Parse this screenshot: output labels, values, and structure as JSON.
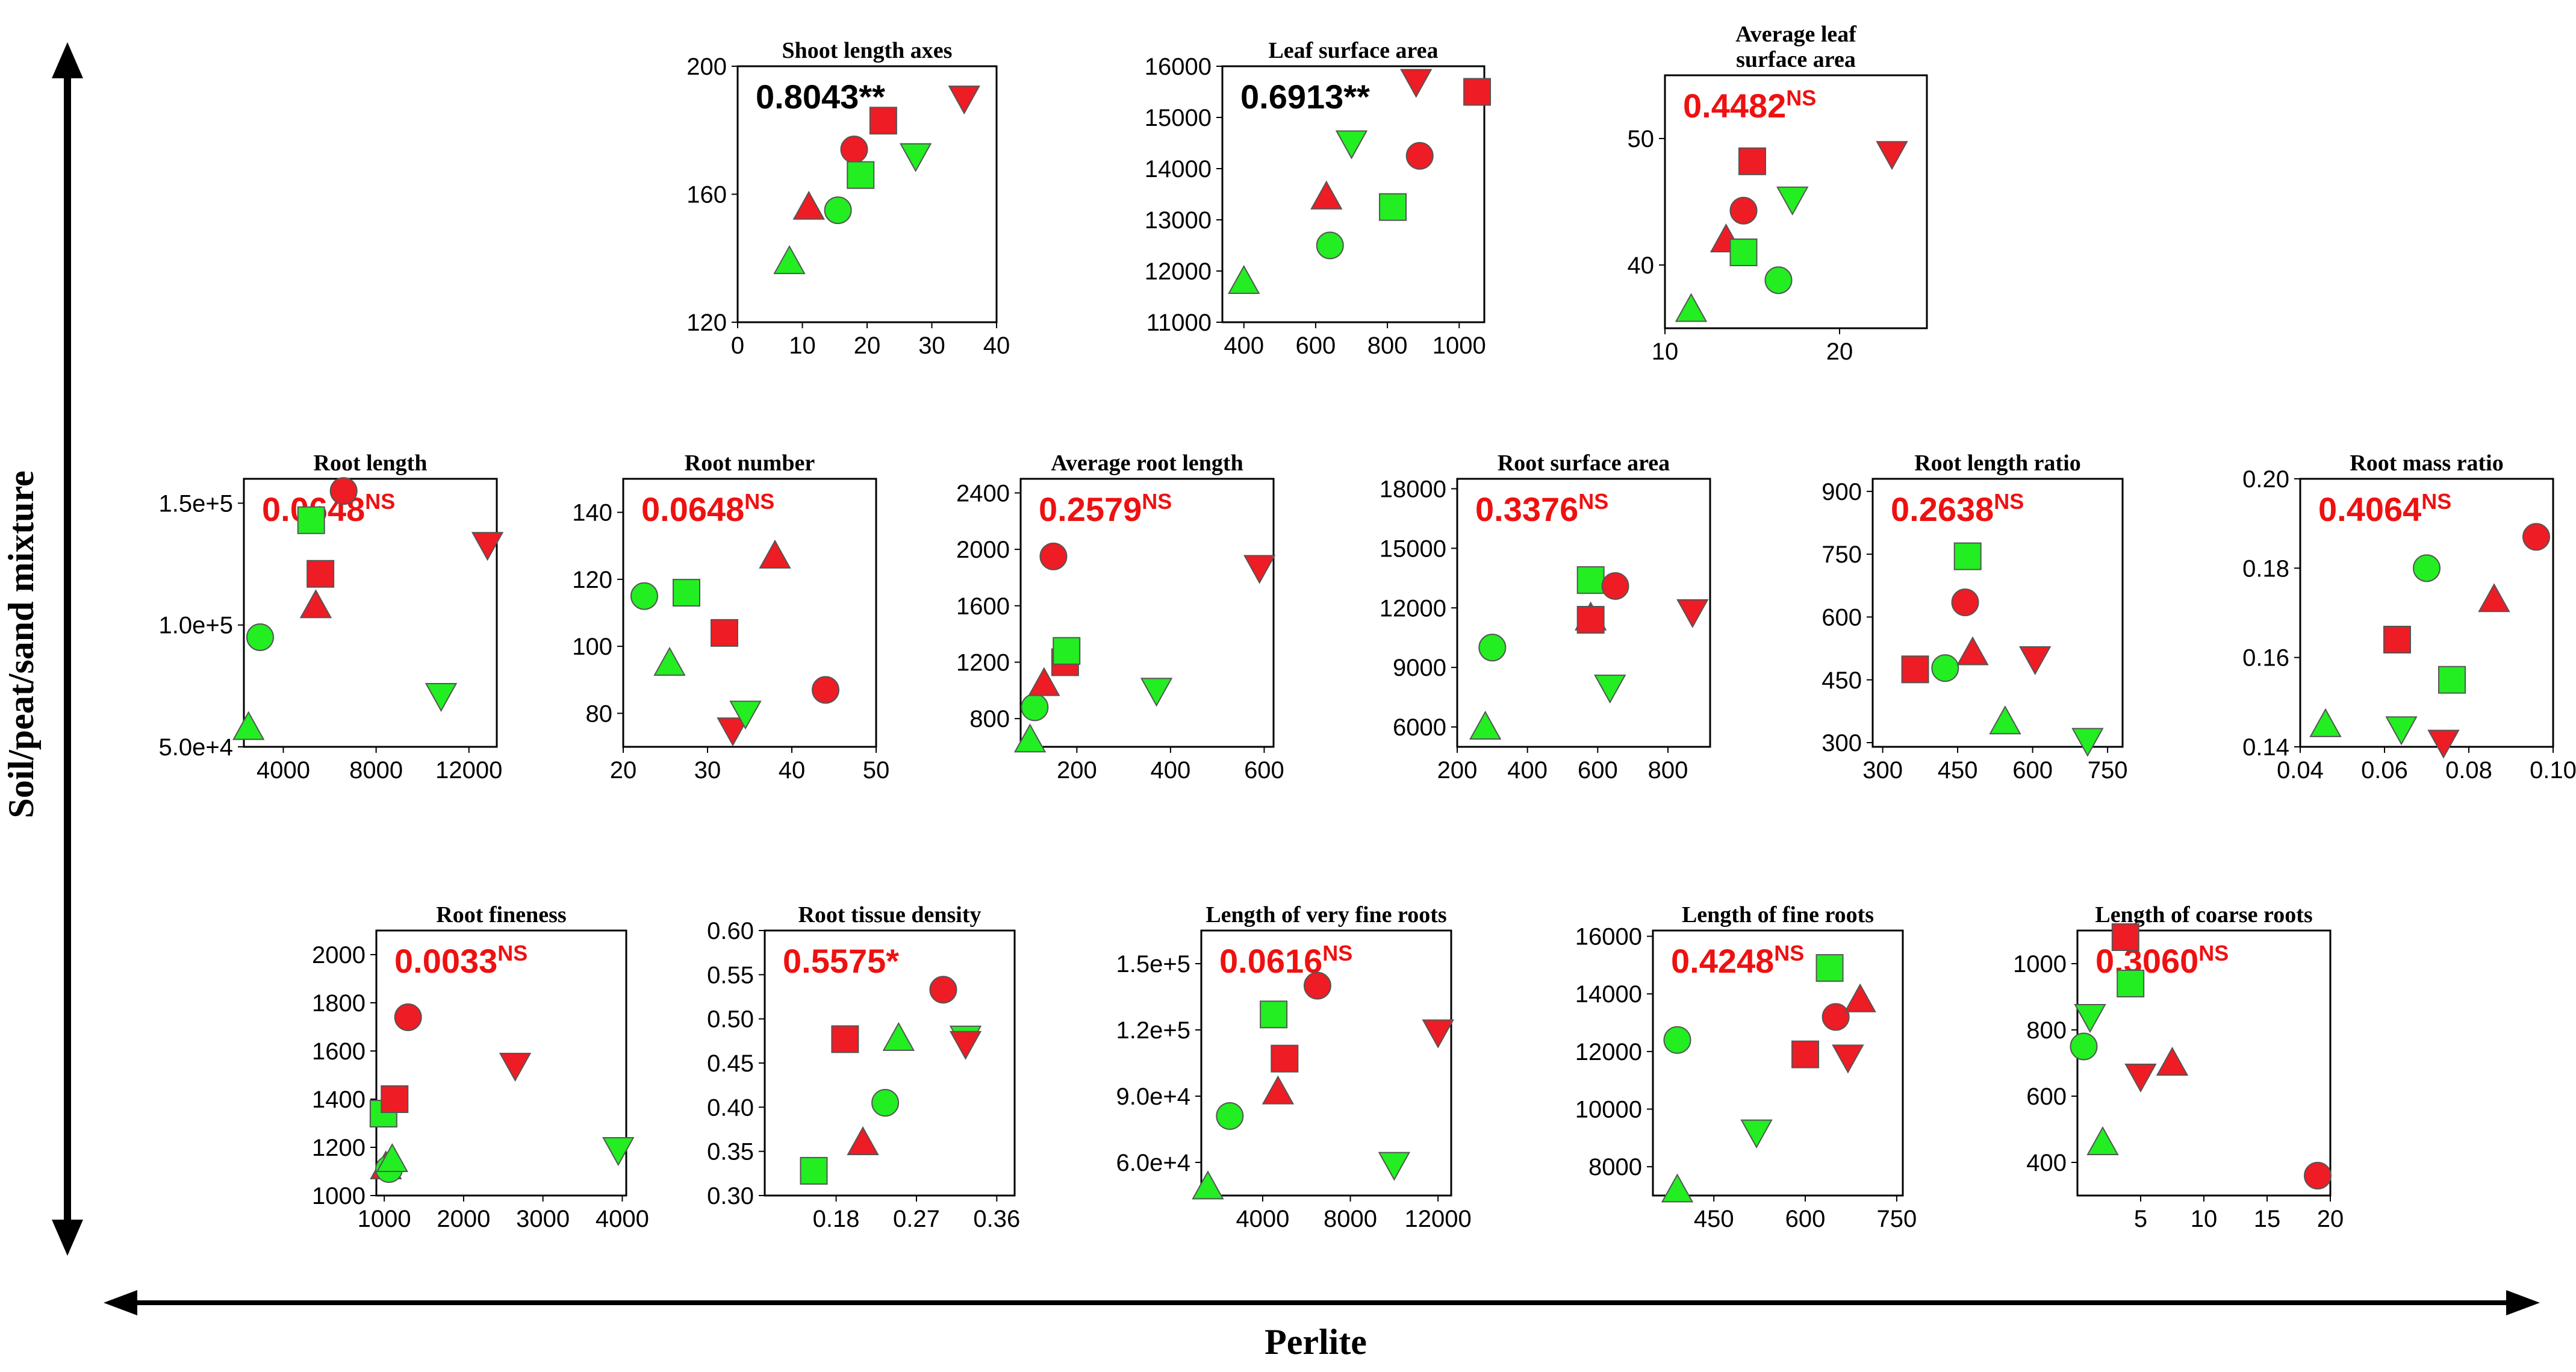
{
  "figure": {
    "y_axis_label": "Soil/peat/sand mixture",
    "x_axis_label": "Perlite",
    "colors": {
      "red": "#ee1c24",
      "green": "#22ee22",
      "sig": "#000000",
      "ns": "#ee1111"
    }
  },
  "chart_data": [
    {
      "type": "scatter",
      "title": "Shoot length axes",
      "coef": "0.8043",
      "sig": "**",
      "xlim": [
        0,
        40
      ],
      "ylim": [
        120,
        200
      ],
      "xticks": [
        "0",
        "10",
        "20",
        "30",
        "40"
      ],
      "yticks": [
        "120",
        "160",
        "200"
      ],
      "points": [
        {
          "x": 8,
          "y": 139,
          "shape": "triangle",
          "color": "green"
        },
        {
          "x": 11,
          "y": 156,
          "shape": "triangle",
          "color": "red"
        },
        {
          "x": 15.5,
          "y": 155,
          "shape": "circle",
          "color": "green"
        },
        {
          "x": 18,
          "y": 174,
          "shape": "circle",
          "color": "red"
        },
        {
          "x": 19,
          "y": 166,
          "shape": "square",
          "color": "green"
        },
        {
          "x": 22.5,
          "y": 183,
          "shape": "square",
          "color": "red"
        },
        {
          "x": 27.5,
          "y": 172,
          "shape": "down",
          "color": "green"
        },
        {
          "x": 35,
          "y": 190,
          "shape": "down",
          "color": "red"
        }
      ]
    },
    {
      "type": "scatter",
      "title": "Leaf surface area",
      "coef": "0.6913",
      "sig": "**",
      "xlim": [
        340,
        1070
      ],
      "ylim": [
        11000,
        16000
      ],
      "xticks": [
        "400",
        "600",
        "800",
        "1000"
      ],
      "yticks": [
        "11000",
        "12000",
        "13000",
        "14000",
        "15000",
        "16000"
      ],
      "points": [
        {
          "x": 400,
          "y": 11800,
          "shape": "triangle",
          "color": "green"
        },
        {
          "x": 630,
          "y": 13450,
          "shape": "triangle",
          "color": "red"
        },
        {
          "x": 640,
          "y": 12500,
          "shape": "circle",
          "color": "green"
        },
        {
          "x": 700,
          "y": 14500,
          "shape": "down",
          "color": "green"
        },
        {
          "x": 815,
          "y": 13250,
          "shape": "square",
          "color": "green"
        },
        {
          "x": 880,
          "y": 15700,
          "shape": "down",
          "color": "red"
        },
        {
          "x": 890,
          "y": 14250,
          "shape": "circle",
          "color": "red"
        },
        {
          "x": 1050,
          "y": 15500,
          "shape": "square",
          "color": "red"
        }
      ]
    },
    {
      "type": "scatter",
      "title": "Average leaf surface area",
      "coef": "0.4482",
      "sig": "NS",
      "xlim": [
        10,
        25
      ],
      "ylim": [
        35,
        55
      ],
      "xticks": [
        "10",
        "20"
      ],
      "yticks": [
        "40",
        "50"
      ],
      "points": [
        {
          "x": 11.5,
          "y": 36.5,
          "shape": "triangle",
          "color": "green"
        },
        {
          "x": 13.5,
          "y": 42,
          "shape": "triangle",
          "color": "red"
        },
        {
          "x": 14.5,
          "y": 41,
          "shape": "square",
          "color": "green"
        },
        {
          "x": 14.5,
          "y": 44.3,
          "shape": "circle",
          "color": "red"
        },
        {
          "x": 15,
          "y": 48.2,
          "shape": "square",
          "color": "red"
        },
        {
          "x": 16.5,
          "y": 38.8,
          "shape": "circle",
          "color": "green"
        },
        {
          "x": 17.3,
          "y": 45.2,
          "shape": "down",
          "color": "green"
        },
        {
          "x": 23,
          "y": 48.8,
          "shape": "down",
          "color": "red"
        }
      ]
    },
    {
      "type": "scatter",
      "title": "Root length",
      "coef": "0.0648",
      "sig": "NS",
      "xlim": [
        2300,
        13200
      ],
      "ylim": [
        50000,
        160000
      ],
      "xticks": [
        "4000",
        "8000",
        "12000"
      ],
      "yticks": [
        "5.0e+4",
        "1.0e+5",
        "1.5e+5"
      ],
      "points": [
        {
          "x": 2500,
          "y": 58000,
          "shape": "triangle",
          "color": "green"
        },
        {
          "x": 3000,
          "y": 95000,
          "shape": "circle",
          "color": "green"
        },
        {
          "x": 5200,
          "y": 143000,
          "shape": "square",
          "color": "green"
        },
        {
          "x": 5400,
          "y": 108000,
          "shape": "triangle",
          "color": "red"
        },
        {
          "x": 5600,
          "y": 121000,
          "shape": "square",
          "color": "red"
        },
        {
          "x": 6600,
          "y": 155000,
          "shape": "circle",
          "color": "red"
        },
        {
          "x": 10800,
          "y": 71000,
          "shape": "down",
          "color": "green"
        },
        {
          "x": 12800,
          "y": 133000,
          "shape": "down",
          "color": "red"
        }
      ]
    },
    {
      "type": "scatter",
      "title": "Root number",
      "coef": "0.0648",
      "sig": "NS",
      "xlim": [
        20,
        50
      ],
      "ylim": [
        70,
        150
      ],
      "xticks": [
        "20",
        "30",
        "40",
        "50"
      ],
      "yticks": [
        "80",
        "100",
        "120",
        "140"
      ],
      "points": [
        {
          "x": 22.5,
          "y": 115,
          "shape": "circle",
          "color": "green"
        },
        {
          "x": 25.5,
          "y": 95,
          "shape": "triangle",
          "color": "green"
        },
        {
          "x": 27.5,
          "y": 116,
          "shape": "square",
          "color": "green"
        },
        {
          "x": 32,
          "y": 104,
          "shape": "square",
          "color": "red"
        },
        {
          "x": 33,
          "y": 75,
          "shape": "down",
          "color": "red"
        },
        {
          "x": 34.5,
          "y": 80,
          "shape": "down",
          "color": "green"
        },
        {
          "x": 38,
          "y": 127,
          "shape": "triangle",
          "color": "red"
        },
        {
          "x": 44,
          "y": 87,
          "shape": "circle",
          "color": "red"
        }
      ]
    },
    {
      "type": "scatter",
      "title": "Average root length",
      "coef": "0.2579",
      "sig": "NS",
      "xlim": [
        80,
        620
      ],
      "ylim": [
        600,
        2500
      ],
      "xticks": [
        "200",
        "400",
        "600"
      ],
      "yticks": [
        "800",
        "1200",
        "1600",
        "2000",
        "2400"
      ],
      "points": [
        {
          "x": 100,
          "y": 650,
          "shape": "triangle",
          "color": "green"
        },
        {
          "x": 110,
          "y": 880,
          "shape": "circle",
          "color": "green"
        },
        {
          "x": 130,
          "y": 1050,
          "shape": "triangle",
          "color": "red"
        },
        {
          "x": 150,
          "y": 1950,
          "shape": "circle",
          "color": "red"
        },
        {
          "x": 175,
          "y": 1200,
          "shape": "square",
          "color": "red"
        },
        {
          "x": 178,
          "y": 1280,
          "shape": "square",
          "color": "green"
        },
        {
          "x": 370,
          "y": 1000,
          "shape": "down",
          "color": "green"
        },
        {
          "x": 590,
          "y": 1870,
          "shape": "down",
          "color": "red"
        }
      ]
    },
    {
      "type": "scatter",
      "title": "Root surface area",
      "coef": "0.3376",
      "sig": "NS",
      "xlim": [
        200,
        920
      ],
      "ylim": [
        5000,
        18500
      ],
      "xticks": [
        "200",
        "400",
        "600",
        "800"
      ],
      "yticks": [
        "6000",
        "9000",
        "12000",
        "15000",
        "18000"
      ],
      "points": [
        {
          "x": 280,
          "y": 6000,
          "shape": "triangle",
          "color": "green"
        },
        {
          "x": 300,
          "y": 10000,
          "shape": "circle",
          "color": "green"
        },
        {
          "x": 580,
          "y": 11500,
          "shape": "triangle",
          "color": "red"
        },
        {
          "x": 580,
          "y": 11400,
          "shape": "square",
          "color": "red"
        },
        {
          "x": 580,
          "y": 13400,
          "shape": "square",
          "color": "green"
        },
        {
          "x": 635,
          "y": 8000,
          "shape": "down",
          "color": "green"
        },
        {
          "x": 650,
          "y": 13100,
          "shape": "circle",
          "color": "red"
        },
        {
          "x": 870,
          "y": 11800,
          "shape": "down",
          "color": "red"
        }
      ]
    },
    {
      "type": "scatter",
      "title": "Root length ratio",
      "coef": "0.2638",
      "sig": "NS",
      "xlim": [
        280,
        780
      ],
      "ylim": [
        290,
        930
      ],
      "xticks": [
        "300",
        "450",
        "600",
        "750"
      ],
      "yticks": [
        "300",
        "450",
        "600",
        "750",
        "900"
      ],
      "points": [
        {
          "x": 365,
          "y": 475,
          "shape": "square",
          "color": "red"
        },
        {
          "x": 425,
          "y": 478,
          "shape": "circle",
          "color": "green"
        },
        {
          "x": 465,
          "y": 635,
          "shape": "circle",
          "color": "red"
        },
        {
          "x": 470,
          "y": 745,
          "shape": "square",
          "color": "green"
        },
        {
          "x": 480,
          "y": 515,
          "shape": "triangle",
          "color": "red"
        },
        {
          "x": 545,
          "y": 350,
          "shape": "triangle",
          "color": "green"
        },
        {
          "x": 605,
          "y": 500,
          "shape": "down",
          "color": "red"
        },
        {
          "x": 710,
          "y": 305,
          "shape": "down",
          "color": "green"
        }
      ]
    },
    {
      "type": "scatter",
      "title": "Root mass ratio",
      "coef": "0.4064",
      "sig": "NS",
      "xlim": [
        0.04,
        0.1
      ],
      "ylim": [
        0.14,
        0.2
      ],
      "xticks": [
        "0.04",
        "0.06",
        "0.08",
        "0.10"
      ],
      "yticks": [
        "0.14",
        "0.16",
        "0.18",
        "0.20"
      ],
      "points": [
        {
          "x": 0.046,
          "y": 0.145,
          "shape": "triangle",
          "color": "green"
        },
        {
          "x": 0.063,
          "y": 0.164,
          "shape": "square",
          "color": "red"
        },
        {
          "x": 0.064,
          "y": 0.144,
          "shape": "down",
          "color": "green"
        },
        {
          "x": 0.07,
          "y": 0.18,
          "shape": "circle",
          "color": "green"
        },
        {
          "x": 0.074,
          "y": 0.141,
          "shape": "down",
          "color": "red"
        },
        {
          "x": 0.076,
          "y": 0.155,
          "shape": "square",
          "color": "green"
        },
        {
          "x": 0.086,
          "y": 0.173,
          "shape": "triangle",
          "color": "red"
        },
        {
          "x": 0.096,
          "y": 0.187,
          "shape": "circle",
          "color": "red"
        }
      ]
    },
    {
      "type": "scatter",
      "title": "Root fineness",
      "coef": "0.0033",
      "sig": "NS",
      "xlim": [
        900,
        4050
      ],
      "ylim": [
        1000,
        2100
      ],
      "xticks": [
        "1000",
        "2000",
        "3000",
        "4000"
      ],
      "yticks": [
        "1000",
        "1200",
        "1400",
        "1600",
        "1800",
        "2000"
      ],
      "points": [
        {
          "x": 990,
          "y": 1340,
          "shape": "square",
          "color": "green"
        },
        {
          "x": 1020,
          "y": 1120,
          "shape": "triangle",
          "color": "red"
        },
        {
          "x": 1060,
          "y": 1110,
          "shape": "circle",
          "color": "green"
        },
        {
          "x": 1100,
          "y": 1150,
          "shape": "triangle",
          "color": "green"
        },
        {
          "x": 1130,
          "y": 1400,
          "shape": "square",
          "color": "red"
        },
        {
          "x": 1300,
          "y": 1740,
          "shape": "circle",
          "color": "red"
        },
        {
          "x": 2650,
          "y": 1540,
          "shape": "down",
          "color": "red"
        },
        {
          "x": 3950,
          "y": 1190,
          "shape": "down",
          "color": "green"
        }
      ]
    },
    {
      "type": "scatter",
      "title": "Root tissue density",
      "coef": "0.5575",
      "sig": "*",
      "xlim": [
        0.1,
        0.38
      ],
      "ylim": [
        0.3,
        0.6
      ],
      "xticks": [
        "0.18",
        "0.27",
        "0.36"
      ],
      "yticks": [
        "0.30",
        "0.35",
        "0.40",
        "0.45",
        "0.50",
        "0.55",
        "0.60"
      ],
      "points": [
        {
          "x": 0.155,
          "y": 0.328,
          "shape": "square",
          "color": "green"
        },
        {
          "x": 0.19,
          "y": 0.477,
          "shape": "square",
          "color": "red"
        },
        {
          "x": 0.21,
          "y": 0.36,
          "shape": "triangle",
          "color": "red"
        },
        {
          "x": 0.235,
          "y": 0.405,
          "shape": "circle",
          "color": "green"
        },
        {
          "x": 0.25,
          "y": 0.478,
          "shape": "triangle",
          "color": "green"
        },
        {
          "x": 0.3,
          "y": 0.533,
          "shape": "circle",
          "color": "red"
        },
        {
          "x": 0.325,
          "y": 0.478,
          "shape": "down",
          "color": "green"
        },
        {
          "x": 0.325,
          "y": 0.472,
          "shape": "down",
          "color": "red"
        }
      ]
    },
    {
      "type": "scatter",
      "title": "Length of very fine roots",
      "coef": "0.0616",
      "sig": "NS",
      "xlim": [
        1200,
        12600
      ],
      "ylim": [
        45000,
        165000
      ],
      "xticks": [
        "4000",
        "8000",
        "12000"
      ],
      "yticks": [
        "6.0e+4",
        "9.0e+4",
        "1.2e+5",
        "1.5e+5"
      ],
      "points": [
        {
          "x": 1500,
          "y": 49000,
          "shape": "triangle",
          "color": "green"
        },
        {
          "x": 2500,
          "y": 81000,
          "shape": "circle",
          "color": "green"
        },
        {
          "x": 4500,
          "y": 127000,
          "shape": "square",
          "color": "green"
        },
        {
          "x": 4700,
          "y": 92000,
          "shape": "triangle",
          "color": "red"
        },
        {
          "x": 5000,
          "y": 107000,
          "shape": "square",
          "color": "red"
        },
        {
          "x": 6500,
          "y": 140000,
          "shape": "circle",
          "color": "red"
        },
        {
          "x": 10000,
          "y": 59000,
          "shape": "down",
          "color": "green"
        },
        {
          "x": 12000,
          "y": 119000,
          "shape": "down",
          "color": "red"
        }
      ]
    },
    {
      "type": "scatter",
      "title": "Length of fine roots",
      "coef": "0.4248",
      "sig": "NS",
      "xlim": [
        350,
        760
      ],
      "ylim": [
        7000,
        16200
      ],
      "xticks": [
        "450",
        "600",
        "750"
      ],
      "yticks": [
        "8000",
        "10000",
        "12000",
        "14000",
        "16000"
      ],
      "points": [
        {
          "x": 390,
          "y": 7200,
          "shape": "triangle",
          "color": "green"
        },
        {
          "x": 390,
          "y": 12400,
          "shape": "circle",
          "color": "green"
        },
        {
          "x": 520,
          "y": 9200,
          "shape": "down",
          "color": "green"
        },
        {
          "x": 600,
          "y": 11900,
          "shape": "square",
          "color": "red"
        },
        {
          "x": 640,
          "y": 14900,
          "shape": "square",
          "color": "green"
        },
        {
          "x": 650,
          "y": 13200,
          "shape": "circle",
          "color": "red"
        },
        {
          "x": 670,
          "y": 11800,
          "shape": "down",
          "color": "red"
        },
        {
          "x": 690,
          "y": 13800,
          "shape": "triangle",
          "color": "red"
        }
      ]
    },
    {
      "type": "scatter",
      "title": "Length of coarse roots",
      "coef": "0.3060",
      "sig": "NS",
      "xlim": [
        0,
        20
      ],
      "ylim": [
        300,
        1100
      ],
      "xticks": [
        "5",
        "10",
        "15",
        "20"
      ],
      "yticks": [
        "400",
        "600",
        "800",
        "1000"
      ],
      "points": [
        {
          "x": 0.5,
          "y": 750,
          "shape": "circle",
          "color": "green"
        },
        {
          "x": 1,
          "y": 840,
          "shape": "down",
          "color": "green"
        },
        {
          "x": 2,
          "y": 460,
          "shape": "triangle",
          "color": "green"
        },
        {
          "x": 3.8,
          "y": 1080,
          "shape": "square",
          "color": "red"
        },
        {
          "x": 4.2,
          "y": 940,
          "shape": "square",
          "color": "green"
        },
        {
          "x": 5,
          "y": 660,
          "shape": "down",
          "color": "red"
        },
        {
          "x": 7.5,
          "y": 700,
          "shape": "triangle",
          "color": "red"
        },
        {
          "x": 19,
          "y": 360,
          "shape": "circle",
          "color": "red"
        }
      ]
    }
  ]
}
